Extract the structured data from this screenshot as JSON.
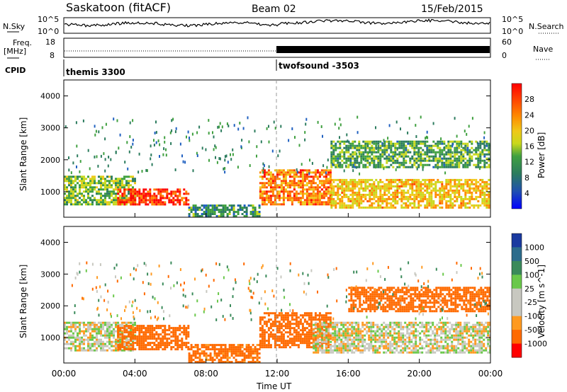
{
  "header": {
    "station": "Saskatoon (fitACF)",
    "beam": "Beam 02",
    "date": "15/Feb/2015"
  },
  "panels": {
    "nsky_label": "N.Sky",
    "nsearch_label": "N.Search",
    "freq_label_line1": "Freq.",
    "freq_label_line2": "[MHz]",
    "nave_label": "Nave",
    "cpid_label": "CPID",
    "nsky_ticks": [
      "10^5",
      "10^0"
    ],
    "nsearch_ticks": [
      "10^5",
      "10^0"
    ],
    "freq_ticks": [
      "18",
      "8"
    ],
    "nave_ticks": [
      "60",
      "0"
    ],
    "cpid_segments": [
      {
        "label": "themis 3300",
        "start_hour": 0
      },
      {
        "label": "twofsound -3503",
        "start_hour": 12
      }
    ]
  },
  "chart_data": [
    {
      "type": "heatmap",
      "name": "power",
      "ylabel": "Slant Range [km]",
      "ylim": [
        200,
        4500
      ],
      "yticks": [
        1000,
        2000,
        3000,
        4000
      ],
      "xlim": [
        0,
        24
      ],
      "colorbar": {
        "label": "Power [dB]",
        "ticks": [
          4,
          8,
          12,
          16,
          20,
          24,
          28
        ],
        "colors": [
          "#1515ff",
          "#2060c0",
          "#2c7c5e",
          "#40a040",
          "#c8d81c",
          "#f0c818",
          "#ff8a00",
          "#ff4a00",
          "#ff0000"
        ]
      },
      "bands": [
        {
          "hours": [
            0,
            4
          ],
          "range_km": [
            600,
            1500
          ],
          "level_db": 14
        },
        {
          "hours": [
            3,
            7
          ],
          "range_km": [
            600,
            1100
          ],
          "level_db": 28
        },
        {
          "hours": [
            7,
            11
          ],
          "range_km": [
            250,
            600
          ],
          "level_db": 10
        },
        {
          "hours": [
            11,
            15
          ],
          "range_km": [
            600,
            1700
          ],
          "level_db": 24
        },
        {
          "hours": [
            15,
            24
          ],
          "range_km": [
            500,
            1400
          ],
          "level_db": 20
        },
        {
          "hours": [
            15,
            24
          ],
          "range_km": [
            1800,
            2600
          ],
          "level_db": 12
        }
      ]
    },
    {
      "type": "heatmap",
      "name": "velocity",
      "ylabel": "Slant Range [km]",
      "xlabel": "Time UT",
      "ylim": [
        200,
        4500
      ],
      "yticks": [
        1000,
        2000,
        3000,
        4000
      ],
      "xlim": [
        0,
        24
      ],
      "xticks": [
        "00:00",
        "04:00",
        "08:00",
        "12:00",
        "16:00",
        "20:00",
        "00:00"
      ],
      "colorbar": {
        "label": "Velocity [m s^-1]",
        "ticks": [
          "1000",
          "500",
          "100",
          "25",
          "-25",
          "-100",
          "-500",
          "-1000"
        ],
        "colors": [
          "#1a3aa0",
          "#2c6c8c",
          "#3a8a5a",
          "#6ac84a",
          "#c8c8c0",
          "#c8c8c0",
          "#ff9a20",
          "#ff6a00",
          "#ff0000"
        ]
      },
      "bands": [
        {
          "hours": [
            0,
            4
          ],
          "range_km": [
            600,
            1500
          ],
          "velocity_ms": 0
        },
        {
          "hours": [
            3,
            7
          ],
          "range_km": [
            600,
            1400
          ],
          "velocity_ms": -300
        },
        {
          "hours": [
            7,
            11
          ],
          "range_km": [
            250,
            800
          ],
          "velocity_ms": -150
        },
        {
          "hours": [
            11,
            15
          ],
          "range_km": [
            700,
            1800
          ],
          "velocity_ms": -200
        },
        {
          "hours": [
            14,
            24
          ],
          "range_km": [
            500,
            1500
          ],
          "velocity_ms": 0
        },
        {
          "hours": [
            16,
            24
          ],
          "range_km": [
            1800,
            2600
          ],
          "velocity_ms": -400
        }
      ]
    }
  ]
}
